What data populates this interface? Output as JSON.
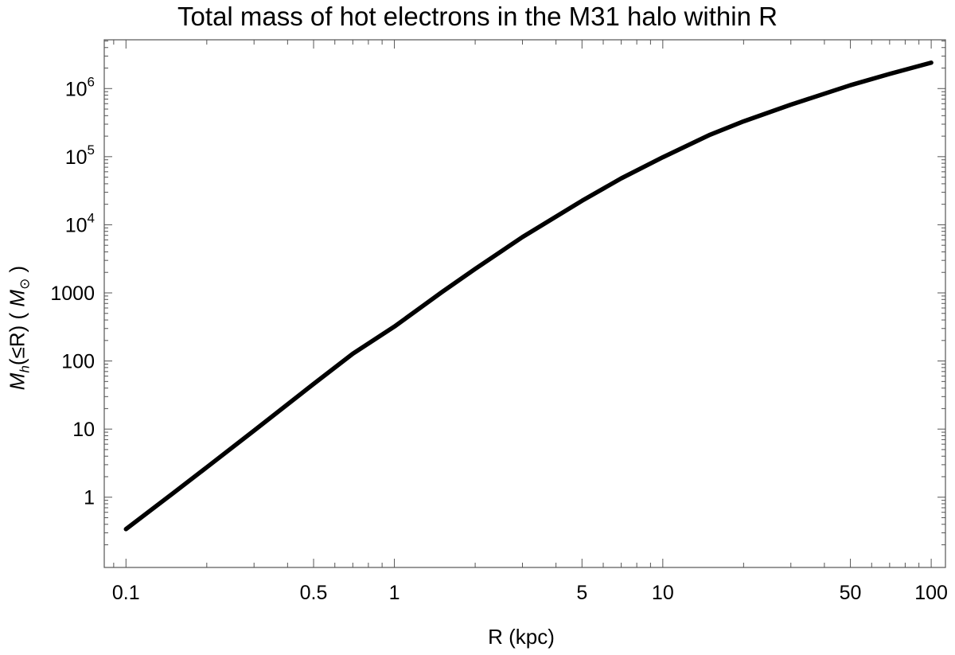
{
  "chart_data": {
    "type": "line",
    "title": "Total mass of hot electrons in the M31 halo within R",
    "xlabel": "R (kpc)",
    "ylabel": {
      "main": "M",
      "sub": "h",
      "mid": "(≤R) ( ",
      "unit_main": "M",
      "unit_sub": "⊙",
      "end": " )"
    },
    "x_scale": "log",
    "y_scale": "log",
    "xlim": [
      0.083,
      113
    ],
    "ylim": [
      0.093,
      5200000
    ],
    "grid": false,
    "x_ticks": [
      {
        "value": 0.1,
        "label": "0.1"
      },
      {
        "value": 0.5,
        "label": "0.5"
      },
      {
        "value": 1,
        "label": "1"
      },
      {
        "value": 5,
        "label": "5"
      },
      {
        "value": 10,
        "label": "10"
      },
      {
        "value": 50,
        "label": "50"
      },
      {
        "value": 100,
        "label": "100"
      }
    ],
    "y_ticks": [
      {
        "value": 1,
        "label": "1",
        "sup": ""
      },
      {
        "value": 10,
        "label": "10",
        "sup": ""
      },
      {
        "value": 100,
        "label": "100",
        "sup": ""
      },
      {
        "value": 1000,
        "label": "1000",
        "sup": ""
      },
      {
        "value": 10000,
        "label": "10",
        "sup": "4"
      },
      {
        "value": 100000,
        "label": "10",
        "sup": "5"
      },
      {
        "value": 1000000,
        "label": "10",
        "sup": "6"
      }
    ],
    "series": [
      {
        "color": "#000000",
        "x": [
          0.1,
          0.15,
          0.2,
          0.3,
          0.5,
          0.7,
          1,
          1.5,
          2,
          3,
          5,
          7,
          10,
          15,
          20,
          30,
          50,
          70,
          100
        ],
        "y": [
          0.34,
          1.15,
          2.75,
          9.5,
          46,
          128,
          320,
          1020,
          2250,
          6600,
          22500,
          48000,
          98000,
          210000,
          330000,
          580000,
          1120000,
          1640000,
          2400000
        ]
      }
    ]
  }
}
